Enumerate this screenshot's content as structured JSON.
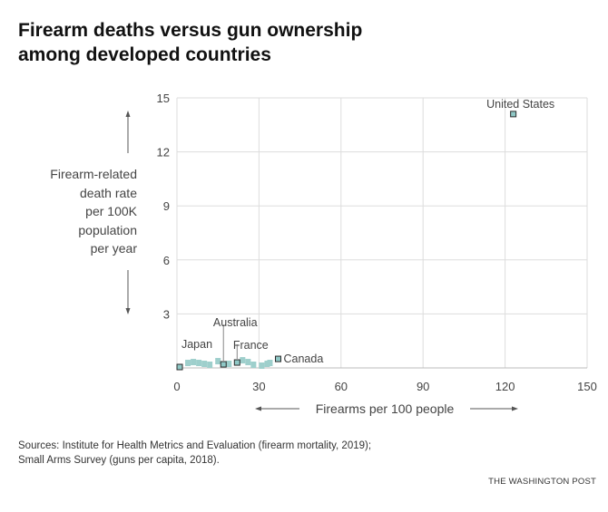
{
  "header": {
    "title_line1": "Firearm deaths versus gun ownership",
    "title_line2": "among developed countries"
  },
  "y_axis_label_lines": [
    "Firearm-related",
    "death rate",
    "per 100K",
    "population",
    "per year"
  ],
  "x_axis_label": "Firearms per 100 people",
  "footer": {
    "sources_line1": "Sources: Institute for Health Metrics and Evaluation (firearm mortality, 2019);",
    "sources_line2": "Small Arms Survey (guns per capita, 2018).",
    "credit": "THE WASHINGTON POST"
  },
  "colors": {
    "point_fill": "#9ecfcc",
    "labeled_point_fill": "#8fc8c6",
    "point_stroke": "#2b2b2b",
    "grid": "#dddddd",
    "text": "#444444"
  },
  "chart_data": {
    "type": "scatter",
    "title": "Firearm deaths versus gun ownership among developed countries",
    "xlabel": "Firearms per 100 people",
    "ylabel": "Firearm-related death rate per 100K population per year",
    "xlim": [
      0,
      150
    ],
    "ylim": [
      0,
      15
    ],
    "x_ticks": [
      0,
      30,
      60,
      90,
      120,
      150
    ],
    "y_ticks": [
      3,
      6,
      9,
      12,
      15
    ],
    "grid": true,
    "points": [
      {
        "name": "United States",
        "x": 123,
        "y": 14.1,
        "labeled": true
      },
      {
        "name": "Canada",
        "x": 37,
        "y": 0.5,
        "labeled": true
      },
      {
        "name": "France",
        "x": 22,
        "y": 0.3,
        "labeled": true
      },
      {
        "name": "Australia",
        "x": 17,
        "y": 0.2,
        "labeled": true
      },
      {
        "name": "Japan",
        "x": 1,
        "y": 0.05,
        "labeled": true
      },
      {
        "name": "",
        "x": 4,
        "y": 0.2,
        "labeled": false
      },
      {
        "name": "",
        "x": 6,
        "y": 0.25,
        "labeled": false
      },
      {
        "name": "",
        "x": 8,
        "y": 0.2,
        "labeled": false
      },
      {
        "name": "",
        "x": 10,
        "y": 0.15,
        "labeled": false
      },
      {
        "name": "",
        "x": 12,
        "y": 0.1,
        "labeled": false
      },
      {
        "name": "",
        "x": 15,
        "y": 0.3,
        "labeled": false
      },
      {
        "name": "",
        "x": 19,
        "y": 0.15,
        "labeled": false
      },
      {
        "name": "",
        "x": 24,
        "y": 0.35,
        "labeled": false
      },
      {
        "name": "",
        "x": 26,
        "y": 0.25,
        "labeled": false
      },
      {
        "name": "",
        "x": 28,
        "y": 0.1,
        "labeled": false
      },
      {
        "name": "",
        "x": 31,
        "y": 0.05,
        "labeled": false
      },
      {
        "name": "",
        "x": 33,
        "y": 0.15,
        "labeled": false
      },
      {
        "name": "",
        "x": 34,
        "y": 0.2,
        "labeled": false
      }
    ]
  }
}
